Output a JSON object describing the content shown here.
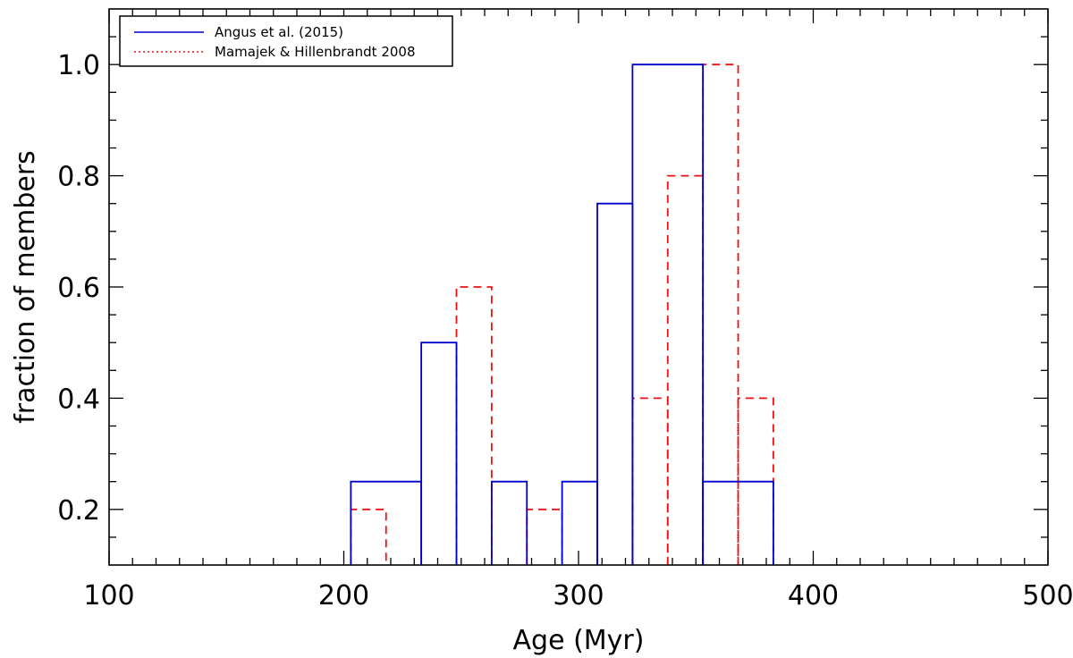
{
  "chart_data": {
    "type": "step",
    "title": "",
    "xlabel": "Age (Myr)",
    "ylabel": "fraction of members",
    "xlim": [
      100,
      500
    ],
    "ylim": [
      0.1,
      1.1
    ],
    "x_major_ticks": [
      100,
      200,
      300,
      400,
      500
    ],
    "x_minor_step": 10,
    "y_major_ticks": [
      0.2,
      0.4,
      0.6,
      0.8,
      1.0
    ],
    "y_minor_step": 0.05,
    "x_tick_labels": [
      "100",
      "200",
      "300",
      "400",
      "500"
    ],
    "y_tick_labels": [
      "0.2",
      "0.4",
      "0.6",
      "0.8",
      "1.0"
    ],
    "legend_position": "top-left",
    "series": [
      {
        "name": "Angus et al. (2015)",
        "legend_style": "solid",
        "color": "#0000cc",
        "line_style": "solid",
        "bins": [
          {
            "x0": 203,
            "x1": 233,
            "value": 0.25
          },
          {
            "x0": 233,
            "x1": 248,
            "value": 0.5
          },
          {
            "x0": 263,
            "x1": 278,
            "value": 0.25
          },
          {
            "x0": 293,
            "x1": 308,
            "value": 0.25
          },
          {
            "x0": 308,
            "x1": 323,
            "value": 0.75
          },
          {
            "x0": 323,
            "x1": 353,
            "value": 1.0
          },
          {
            "x0": 353,
            "x1": 383,
            "value": 0.25
          }
        ]
      },
      {
        "name": "Mamajek & Hillenbrandt 2008",
        "legend_style": "dotted",
        "color": "#ee1111",
        "line_style": "dashed",
        "bins": [
          {
            "x0": 203,
            "x1": 218,
            "value": 0.2
          },
          {
            "x0": 248,
            "x1": 263,
            "value": 0.6
          },
          {
            "x0": 278,
            "x1": 293,
            "value": 0.2
          },
          {
            "x0": 323,
            "x1": 338,
            "value": 0.4
          },
          {
            "x0": 338,
            "x1": 353,
            "value": 0.8
          },
          {
            "x0": 353,
            "x1": 368,
            "value": 1.0
          },
          {
            "x0": 368,
            "x1": 383,
            "value": 0.4
          }
        ]
      }
    ]
  }
}
